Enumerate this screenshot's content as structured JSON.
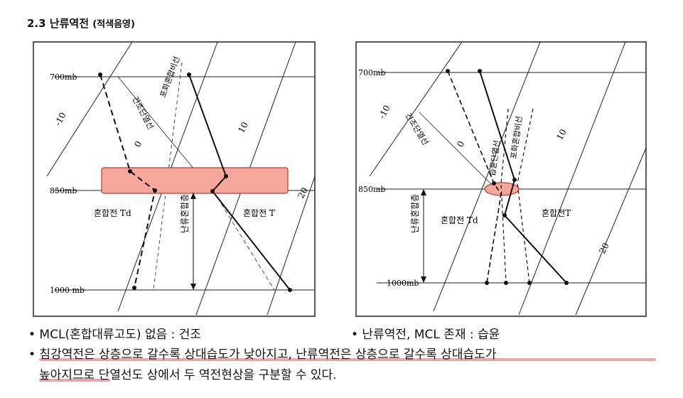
{
  "header": {
    "title": "2.3 난류역전",
    "subtitle": "(적색음영)"
  },
  "left_diagram": {
    "p700": "700mb",
    "p850": "850mb",
    "p1000": "1000 mb",
    "iso_m10": "-10",
    "iso_0": "0",
    "iso_10": "10",
    "iso_20": "20",
    "label_dry": "건조단열선",
    "label_mix": "포화혼합비선",
    "label_td": "혼합전 Td",
    "label_t": "혼합전 T",
    "label_layer": "난류혼합층"
  },
  "right_diagram": {
    "p700": "700mb",
    "p850": "850mb",
    "p1000": "1000mb",
    "iso_m10": "-10",
    "iso_0": "0",
    "iso_10": "10",
    "iso_20": "20",
    "label_dry": "건조단열선",
    "label_mix": "포화혼합비선",
    "label_moist": "습윤단열선",
    "label_td": "혼합전 Td",
    "label_t": "혼합전T",
    "label_layer": "난류혼합층"
  },
  "bullets": {
    "b1": "• MCL(혼합대류고도) 없음 : 건조",
    "b2": "• 난류역전, MCL 존재 : 습윤",
    "b3": "• 침강역전은 상층으로 갈수록 상대습도가 낮아지고, 난류역전은 상층으로 갈수록 상대습도가",
    "b4": "높아지므로 단열선도 상에서 두 역전현상을 구분할 수 있다."
  },
  "colors": {
    "highlight_fill": "#f4a79a",
    "highlight_stroke": "#c0392b",
    "underline": "#e9a6a6"
  }
}
